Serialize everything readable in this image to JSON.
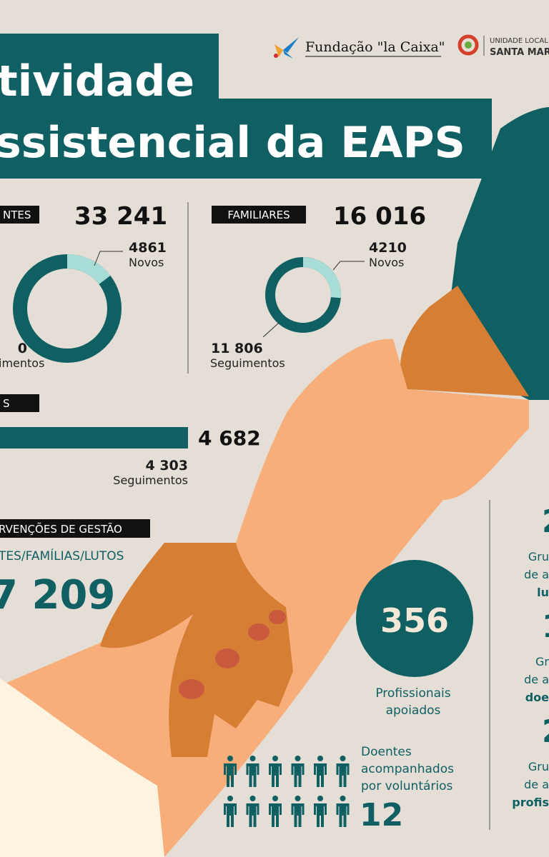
{
  "header": {
    "title_line1": "tividade",
    "title_line2": "ssistencial da EAPS",
    "logo1": "Fundação \"la Caixa\"",
    "logo2_line1": "UNIDADE LOCAL",
    "logo2_line2": "SANTA MAR"
  },
  "doentes": {
    "label": "NTES",
    "total": "33 241",
    "novos": "4861",
    "novos_label": "Novos",
    "seguimentos": "0",
    "seguimentos_label": "imentos"
  },
  "familiares": {
    "label": "FAMILIARES",
    "total": "16 016",
    "novos": "4210",
    "novos_label": "Novos",
    "seguimentos": "11 806",
    "seguimentos_label": "Seguimentos"
  },
  "lutos": {
    "label": "S",
    "total": "4 682",
    "seguimentos": "4 303",
    "seguimentos_label": "Seguimentos"
  },
  "gestao": {
    "label": "RVENÇÕES DE GESTÃO",
    "subtitle": "TES/FAMÍLIAS/LUTOS",
    "value": "7 209"
  },
  "profissionais": {
    "value": "356",
    "label_line1": "Profissionais",
    "label_line2": "apoiados"
  },
  "voluntarios": {
    "label_line1": "Doentes",
    "label_line2": "acompanhados",
    "label_line3": "por voluntários",
    "value": "12"
  },
  "grupos": [
    {
      "value": "2",
      "line1": "Gru",
      "line2": "de a",
      "line3": "lu"
    },
    {
      "value": "1",
      "line1": "Gr",
      "line2": "de a",
      "line3": "doe"
    },
    {
      "value": "2",
      "line1": "Gru",
      "line2": "de a",
      "line3": "profis"
    }
  ]
}
